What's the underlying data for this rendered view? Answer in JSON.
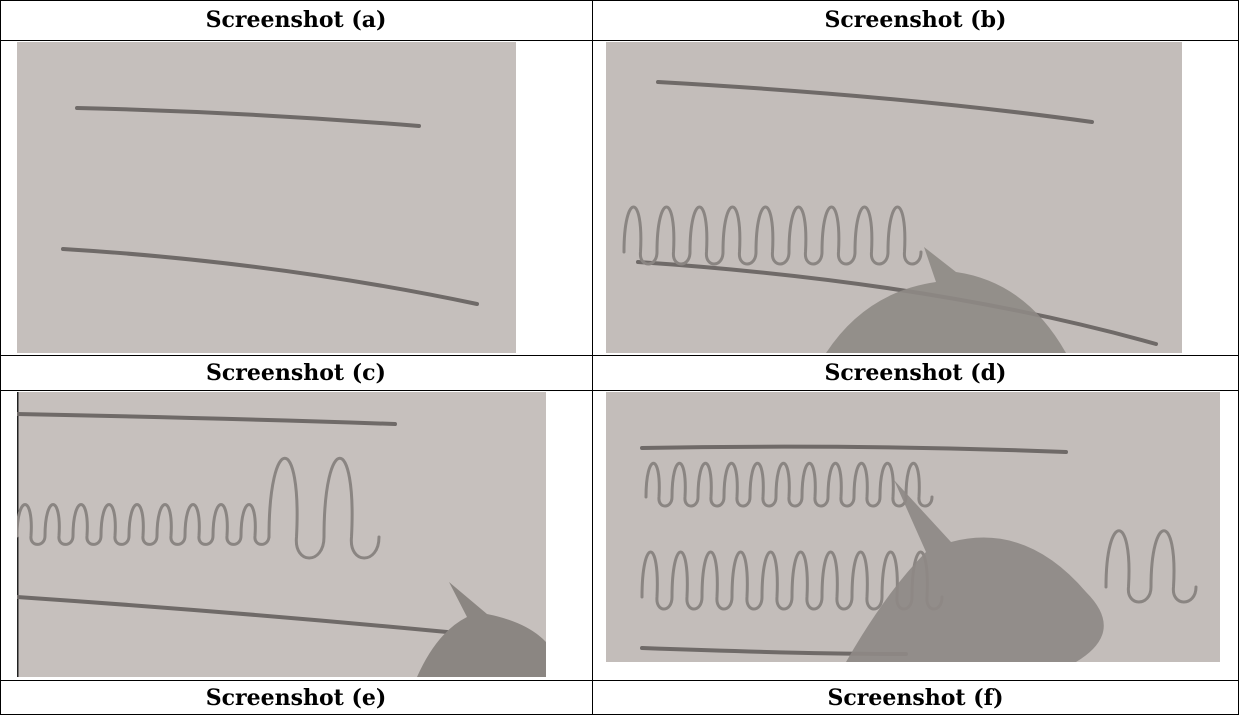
{
  "table": {
    "rows": [
      [
        "Screenshot (a)",
        "Screenshot (b)"
      ],
      [
        "Screenshot (c)",
        "Screenshot (d)"
      ],
      [
        "Screenshot (e)",
        "Screenshot (f)"
      ]
    ]
  }
}
